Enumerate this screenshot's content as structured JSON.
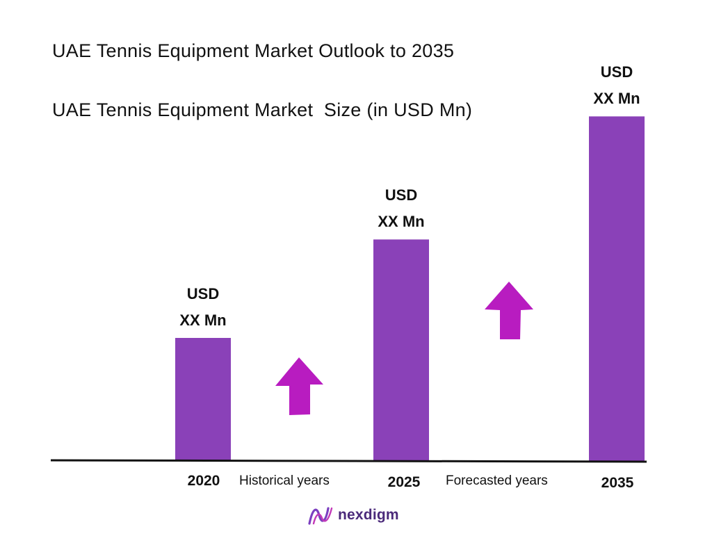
{
  "chart_data": {
    "type": "bar",
    "title": "UAE Tennis Equipment Market Outlook to 2035",
    "subtitle": "UAE Tennis Equipment Market  Size (in USD Mn)",
    "categories": [
      "2020",
      "2025",
      "2035"
    ],
    "values": [
      30,
      54,
      84
    ],
    "ylim": [
      0,
      100
    ],
    "bar_labels": [
      {
        "line1": "USD",
        "line2": "XX Mn"
      },
      {
        "line1": "USD",
        "line2": "XX Mn"
      },
      {
        "line1": "USD",
        "line2": "XX Mn"
      }
    ],
    "period_labels": [
      "Historical years",
      "Forecasted years"
    ],
    "grid": false,
    "legend": "none"
  },
  "colors": {
    "bar": "#8a41b8",
    "arrow": "#b81cc0",
    "axis": "#111111",
    "logo": "#4b2a7a"
  },
  "logo": {
    "text": "nexdigm",
    "icon": "nexdigm-wave-icon"
  }
}
